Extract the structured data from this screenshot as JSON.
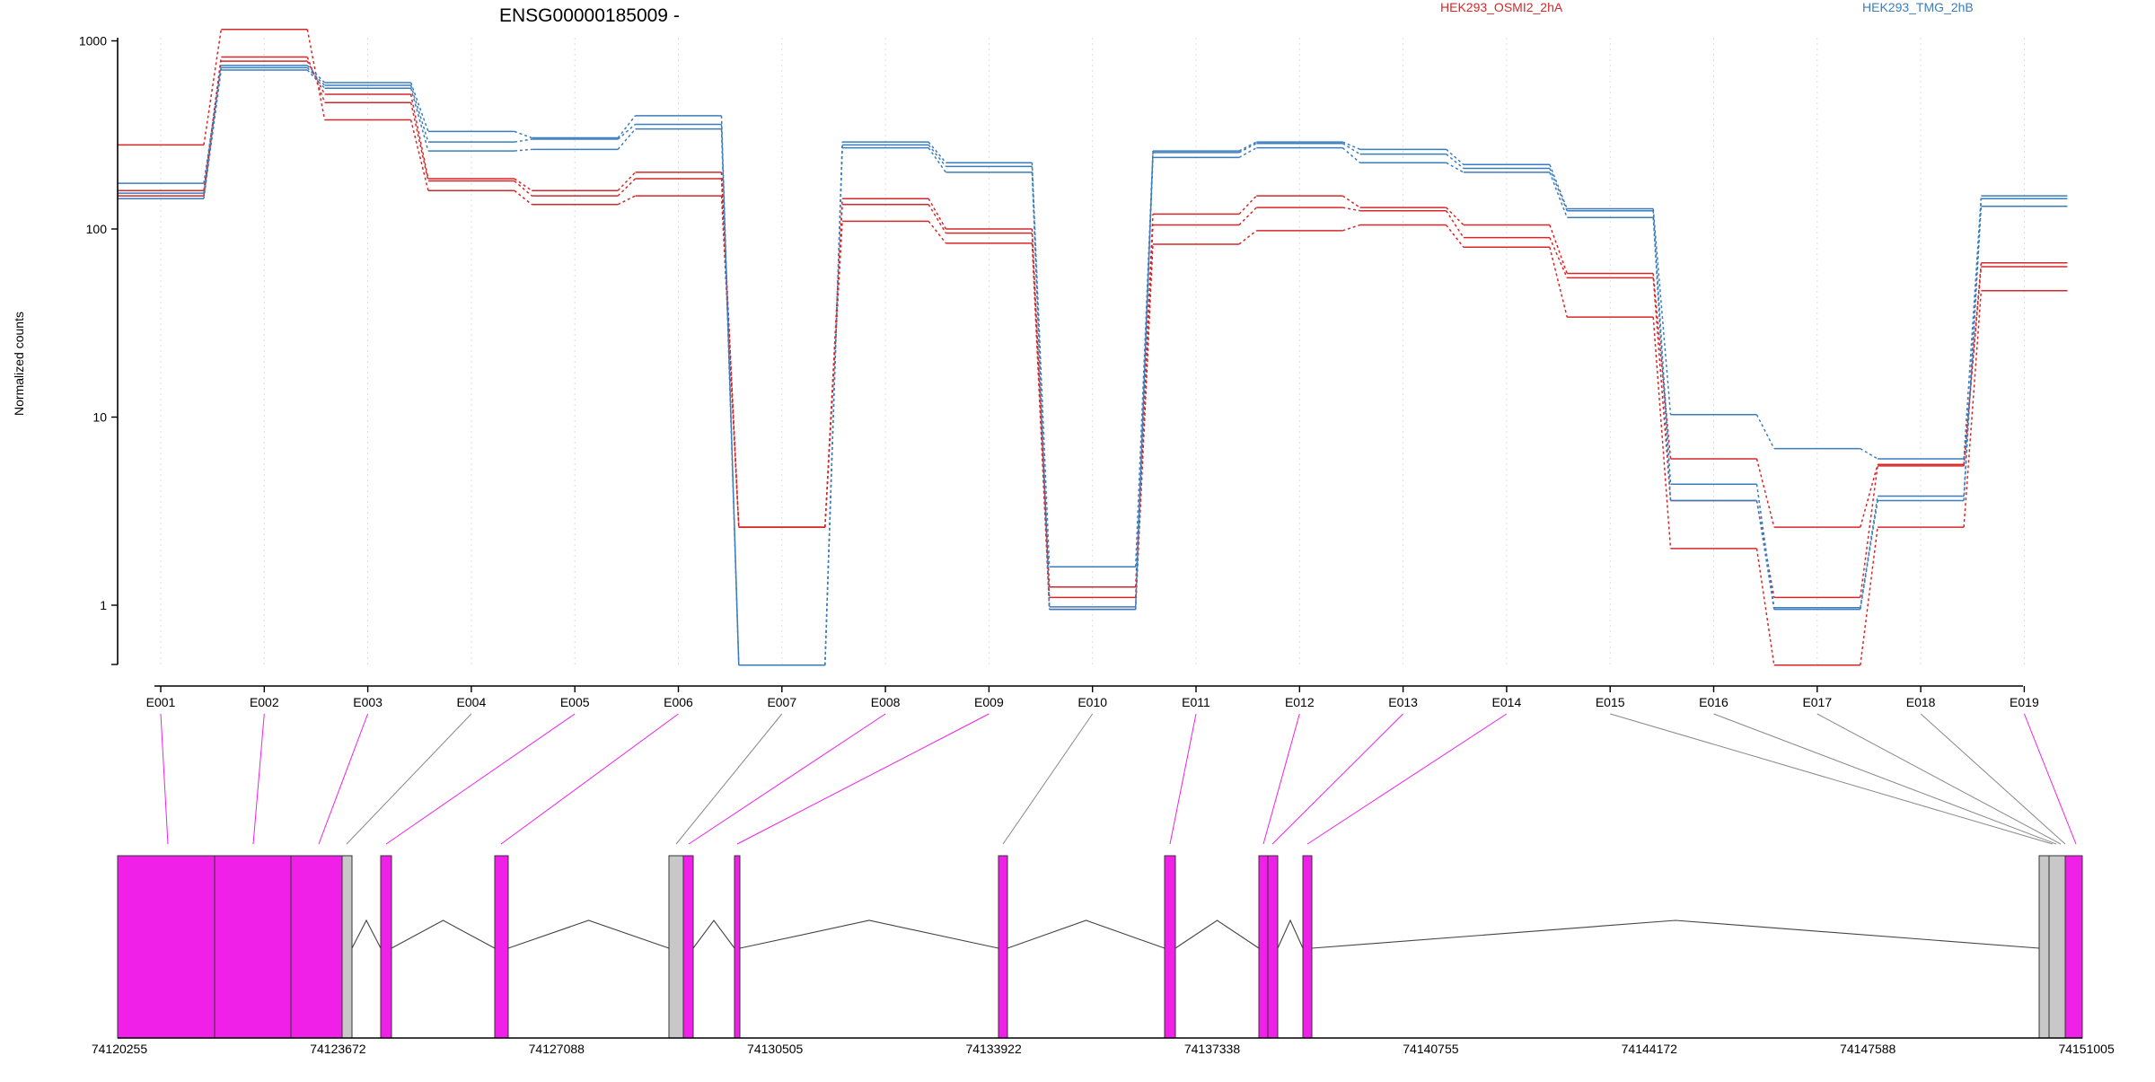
{
  "chart_data": {
    "type": "line",
    "title": "ENSG00000185009 -",
    "ylabel": "Normalized counts",
    "yscale": "log",
    "ylim": [
      0.4,
      2500
    ],
    "yticks": [
      1,
      10,
      100,
      1000
    ],
    "ytick_labels": [
      "1",
      "10",
      "100",
      "1000"
    ],
    "grid": "vertical-dotted",
    "legend_placement": "top-right",
    "categories": [
      "E001",
      "E002",
      "E003",
      "E004",
      "E005",
      "E006",
      "E007",
      "E008",
      "E009",
      "E010",
      "E011",
      "E012",
      "E013",
      "E014",
      "E015",
      "E016",
      "E017",
      "E018",
      "E019"
    ],
    "series": [
      {
        "name": "HEK293_OSMI2_2hA",
        "color": "#d62728",
        "lines": [
          [
            280,
            1150,
            380,
            160,
            135,
            150,
            2.6,
            110,
            84,
            0.95,
            83,
            98,
            105,
            80,
            34,
            2.0,
            0.48,
            2.6,
            47
          ],
          [
            160,
            820,
            470,
            180,
            150,
            185,
            2.6,
            135,
            95,
            1.1,
            105,
            130,
            125,
            90,
            55,
            3.6,
            1.1,
            5.5,
            63
          ],
          [
            150,
            780,
            520,
            185,
            160,
            200,
            2.6,
            145,
            100,
            1.25,
            120,
            150,
            130,
            105,
            58,
            6.0,
            2.6,
            5.6,
            66
          ]
        ]
      },
      {
        "name": "HEK293_TMG_2hB",
        "color": "#3a7dbd",
        "lines": [
          [
            145,
            700,
            560,
            260,
            265,
            340,
            0.48,
            270,
            200,
            0.95,
            240,
            270,
            225,
            200,
            115,
            3.6,
            0.95,
            3.6,
            132
          ],
          [
            155,
            720,
            580,
            290,
            300,
            360,
            0.48,
            280,
            215,
            0.98,
            255,
            285,
            250,
            210,
            125,
            4.4,
            0.97,
            3.8,
            145
          ],
          [
            175,
            740,
            600,
            330,
            305,
            400,
            0.48,
            290,
            225,
            1.6,
            260,
            290,
            265,
            220,
            128,
            10.3,
            6.8,
            6.0,
            150
          ]
        ]
      }
    ],
    "gene_model": {
      "coord_ticks": [
        "74120255",
        "74123672",
        "74127088",
        "74130505",
        "74133922",
        "74137338",
        "74140755",
        "74144172",
        "74147588",
        "74151005"
      ],
      "feature_colors": {
        "significant": "#f020e8",
        "not_significant": "#c8c8c8"
      }
    }
  }
}
